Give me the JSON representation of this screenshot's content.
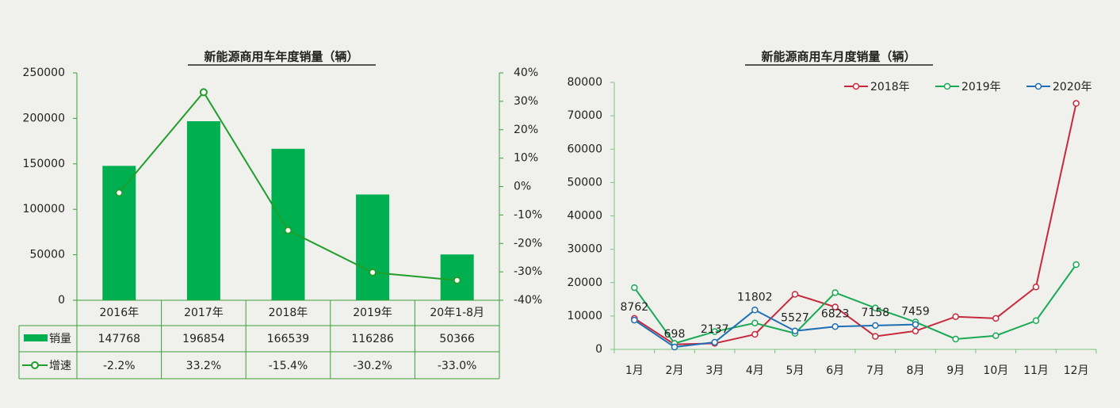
{
  "chart_data": [
    {
      "type": "combo",
      "title": "新能源商用车年度销量（辆）",
      "categories": [
        "2016年",
        "2017年",
        "2018年",
        "2019年",
        "20年1-8月"
      ],
      "series": [
        {
          "name": "销量",
          "color": "#00b050",
          "values": [
            147768,
            196854,
            166539,
            116286,
            50366
          ]
        },
        {
          "name": "增速",
          "color": "#1f9e2a",
          "axis": "y2",
          "values": [
            -2.2,
            33.2,
            -15.4,
            -30.2,
            -33.0
          ],
          "value_labels": [
            "-2.2%",
            "33.2%",
            "-15.4%",
            "-30.2%",
            "-33.0%"
          ]
        }
      ],
      "ylim": [
        0,
        250000
      ],
      "yticks": [
        0,
        50000,
        100000,
        150000,
        200000,
        250000
      ],
      "y2lim": [
        -40,
        40
      ],
      "y2ticks": [
        {
          "value": -40,
          "label": "-40%"
        },
        {
          "value": -30,
          "label": "-30%"
        },
        {
          "value": -20,
          "label": "-20%"
        },
        {
          "value": -10,
          "label": "-10%"
        },
        {
          "value": 0,
          "label": "0%"
        },
        {
          "value": 10,
          "label": "10%"
        },
        {
          "value": 20,
          "label": "20%"
        },
        {
          "value": 30,
          "label": "30%"
        },
        {
          "value": 40,
          "label": "40%"
        }
      ]
    },
    {
      "type": "line",
      "title": "新能源商用车月度销量（辆）",
      "categories": [
        "1月",
        "2月",
        "3月",
        "4月",
        "5月",
        "6月",
        "7月",
        "8月",
        "9月",
        "10月",
        "11月",
        "12月"
      ],
      "series": [
        {
          "name": "2018年",
          "color": "#c8283c",
          "values": [
            9300,
            1500,
            1800,
            4500,
            16500,
            12700,
            3900,
            5500,
            9800,
            9300,
            18700,
            73700
          ]
        },
        {
          "name": "2019年",
          "color": "#1aaa55",
          "values": [
            18500,
            1800,
            5300,
            7900,
            4800,
            17000,
            12400,
            8200,
            3100,
            4100,
            8600,
            25400
          ]
        },
        {
          "name": "2020年",
          "color": "#1f6fb4",
          "values": [
            8762,
            698,
            2137,
            11802,
            5527,
            6823,
            7158,
            7459,
            null,
            null,
            null,
            null
          ]
        }
      ],
      "data_labels_series": 2,
      "ylim": [
        0,
        80000
      ],
      "yticks": [
        0,
        10000,
        20000,
        30000,
        40000,
        50000,
        60000,
        70000,
        80000
      ]
    }
  ]
}
